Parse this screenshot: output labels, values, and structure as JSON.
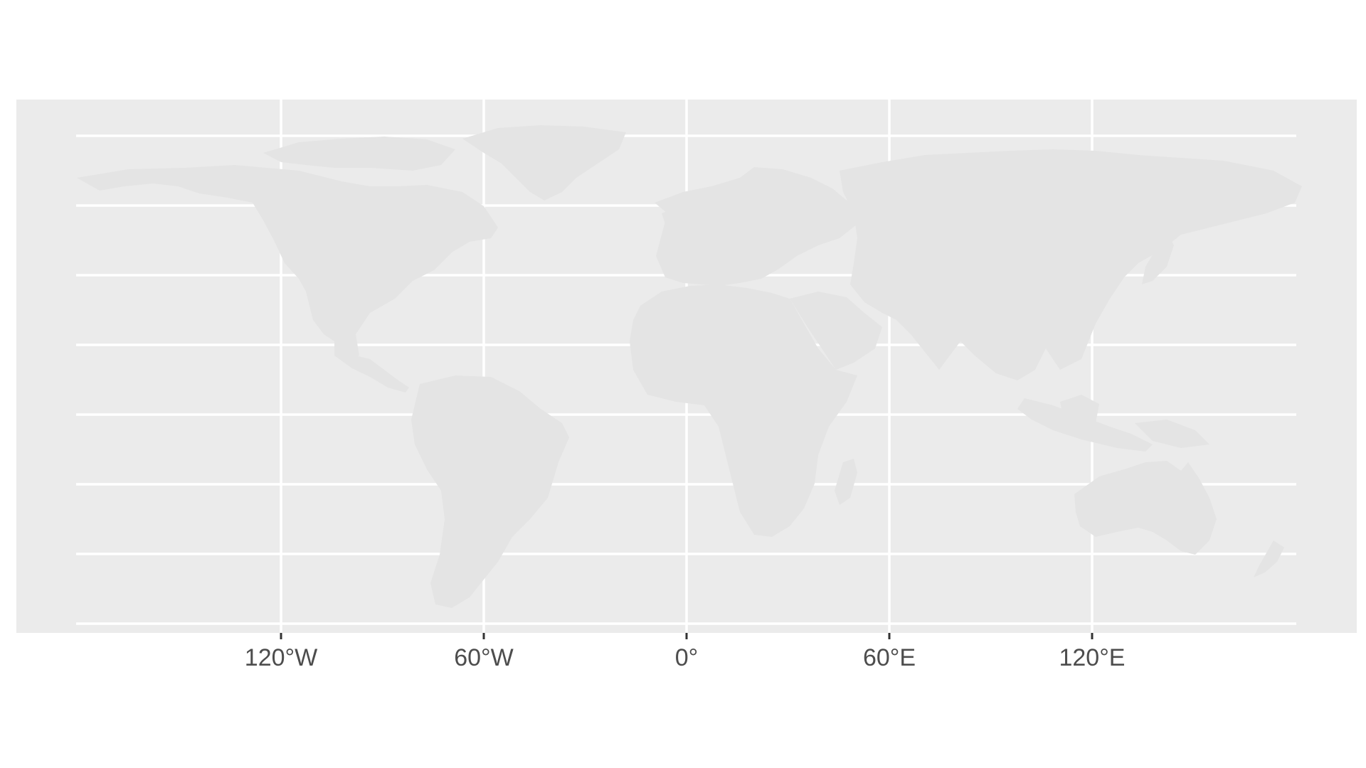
{
  "map": {
    "projection": "equirectangular",
    "basemap": "world countries",
    "panel_color": "#ebebeb",
    "land_color": "#e4e4e4",
    "gridline_color": "#ffffff",
    "x_axis": {
      "breaks": [
        -120,
        -60,
        0,
        60,
        120
      ],
      "labels": [
        "120°W",
        "60°W",
        "0°",
        "60°E",
        "120°E"
      ],
      "range": [
        -180,
        180
      ]
    },
    "y_axis": {
      "breaks": [
        80,
        60,
        40,
        20,
        0,
        -20,
        -40,
        -60
      ],
      "labels": [],
      "range": [
        -60,
        84
      ]
    },
    "grid": true,
    "legend": "none"
  }
}
